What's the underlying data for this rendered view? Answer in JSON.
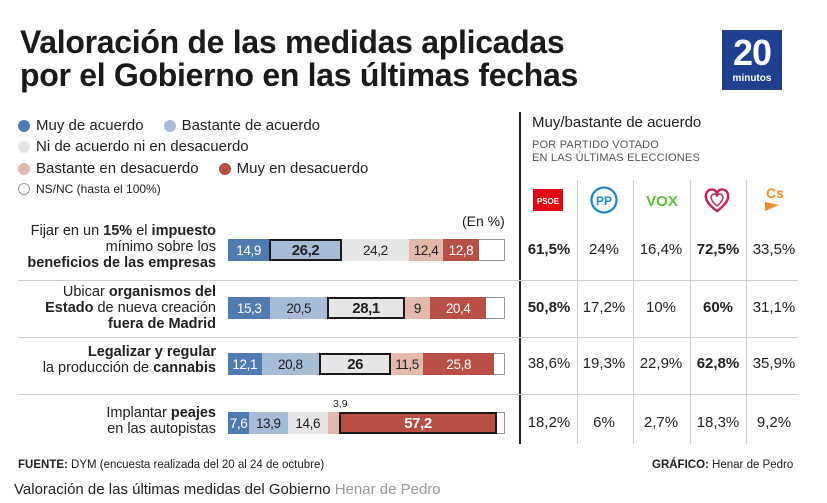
{
  "title_line1": "Valoración de las medidas aplicadas",
  "title_line2": "por el Gobierno en las últimas fechas",
  "logo": {
    "number": "20",
    "word": "minutos"
  },
  "legend": {
    "muy_acuerdo": "Muy de acuerdo",
    "bastante_acuerdo": "Bastante de acuerdo",
    "ni": "Ni de acuerdo ni en desacuerdo",
    "bastante_desacuerdo": "Bastante en desacuerdo",
    "muy_desacuerdo": "Muy en desacuerdo",
    "nsnc": "NS/NC (hasta el 100%)"
  },
  "colors": {
    "muy_acuerdo": "#4f7bb0",
    "bastante_acuerdo": "#a8bcd8",
    "ni": "#e6e6e6",
    "bastante_desacuerdo": "#e3b9ad",
    "muy_desacuerdo": "#b84f45",
    "nsnc": "#ffffff"
  },
  "right_header": {
    "title": "Muy/bastante de acuerdo",
    "sub1": "POR PARTIDO VOTADO",
    "sub2": "EN LAS ÚLTIMAS ELECCIONES"
  },
  "parties": [
    {
      "name": "PSOE",
      "icon": "psoe-logo-icon",
      "color": "#e30613"
    },
    {
      "name": "PP",
      "icon": "pp-logo-icon",
      "color": "#1d84ce"
    },
    {
      "name": "VOX",
      "icon": "vox-logo-icon",
      "color": "#5ac035"
    },
    {
      "name": "Podemos",
      "icon": "podemos-heart-icon",
      "color": "#c1285b"
    },
    {
      "name": "Cs",
      "icon": "cs-logo-icon",
      "color": "#f28c28"
    }
  ],
  "unit_label": "(En %)",
  "chart_data": {
    "type": "bar",
    "orientation": "horizontal-stacked-100",
    "title": "Valoración de las medidas aplicadas por el Gobierno en las últimas fechas",
    "unit": "%",
    "categories": [
      "Fijar en un 15% el impuesto mínimo sobre los beneficios de las empresas",
      "Ubicar organismos del Estado de nueva creación fuera de Madrid",
      "Legalizar y regular la producción de cannabis",
      "Implantar peajes en las autopistas"
    ],
    "series": [
      {
        "name": "Muy de acuerdo",
        "values": [
          14.9,
          15.3,
          12.1,
          7.6
        ]
      },
      {
        "name": "Bastante de acuerdo",
        "values": [
          26.2,
          20.5,
          20.8,
          13.9
        ]
      },
      {
        "name": "Ni de acuerdo ni en desacuerdo",
        "values": [
          24.2,
          28.1,
          26,
          14.6
        ]
      },
      {
        "name": "Bastante en desacuerdo",
        "values": [
          12.4,
          9,
          11.5,
          3.9
        ]
      },
      {
        "name": "Muy en desacuerdo",
        "values": [
          12.8,
          20.4,
          25.8,
          57.2
        ]
      }
    ],
    "highlight": [
      1,
      2,
      2,
      4
    ],
    "party_agreement": {
      "columns": [
        "PSOE",
        "PP",
        "VOX",
        "Podemos",
        "Cs"
      ],
      "rows": [
        {
          "values": [
            "61,5%",
            "24%",
            "16,4%",
            "72,5%",
            "33,5%"
          ],
          "bold": [
            true,
            false,
            false,
            true,
            false
          ]
        },
        {
          "values": [
            "50,8%",
            "17,2%",
            "10%",
            "60%",
            "31,1%"
          ],
          "bold": [
            true,
            false,
            false,
            true,
            false
          ]
        },
        {
          "values": [
            "38,6%",
            "19,3%",
            "22,9%",
            "62,8%",
            "35,9%"
          ],
          "bold": [
            false,
            false,
            false,
            true,
            false
          ]
        },
        {
          "values": [
            "18,2%",
            "6%",
            "2,7%",
            "18,3%",
            "9,2%"
          ],
          "bold": [
            false,
            false,
            false,
            false,
            false
          ]
        }
      ]
    }
  },
  "row_labels": [
    [
      {
        "t": "Fijar en un ",
        "b": false
      },
      {
        "t": "15%",
        "b": true
      },
      {
        "t": " el ",
        "b": false
      },
      {
        "t": "impuesto",
        "b": true
      },
      {
        "t": "\nmínimo sobre los\n",
        "b": false
      },
      {
        "t": "beneficios de las empresas",
        "b": true
      }
    ],
    [
      {
        "t": "Ubicar ",
        "b": false
      },
      {
        "t": "organismos del\nEstado",
        "b": true
      },
      {
        "t": " de nueva creación\n",
        "b": false
      },
      {
        "t": "fuera de Madrid",
        "b": true
      }
    ],
    [
      {
        "t": "Legalizar y regular",
        "b": true
      },
      {
        "t": "\nla producción de ",
        "b": false
      },
      {
        "t": "cannabis",
        "b": true
      }
    ],
    [
      {
        "t": "Implantar ",
        "b": false
      },
      {
        "t": "peajes",
        "b": true
      },
      {
        "t": "\nen las autopistas",
        "b": false
      }
    ]
  ],
  "value_labels": [
    [
      "14,9",
      "26,2",
      "24,2",
      "12,4",
      "12,8"
    ],
    [
      "15,3",
      "20,5",
      "28,1",
      "9",
      "20,4"
    ],
    [
      "12,1",
      "20,8",
      "26",
      "11,5",
      "25,8"
    ],
    [
      "7,6",
      "13,9",
      "14,6",
      "3,9",
      "57,2"
    ]
  ],
  "footer": {
    "source_label": "FUENTE:",
    "source_text": " DYM (encuesta realizada del 20 al 24 de octubre)",
    "graphic_label": "GRÁFICO:",
    "graphic_text": " Henar de Pedro"
  },
  "caption": {
    "text": "Valoración de las últimas medidas del Gobierno",
    "credit": "Henar de Pedro"
  }
}
